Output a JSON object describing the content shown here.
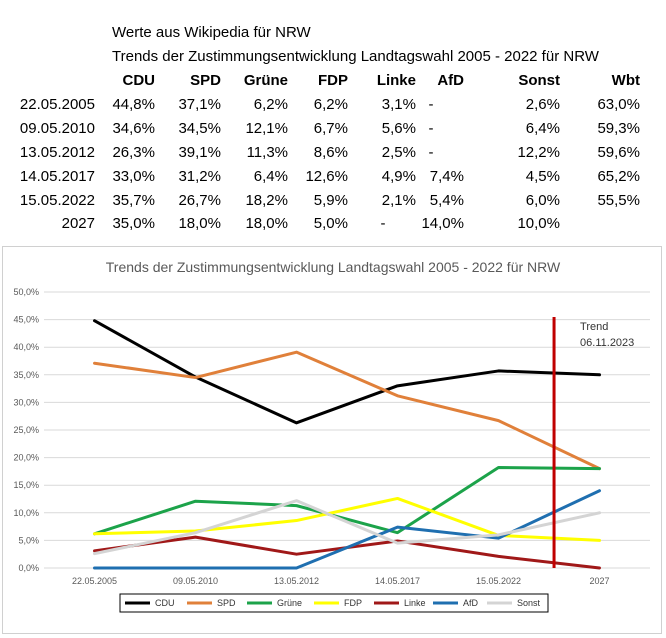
{
  "header": {
    "source": "Werte aus Wikipedia für NRW",
    "title": "Trends der Zustimmungsentwicklung Landtagswahl 2005 - 2022 für NRW"
  },
  "table": {
    "columns": [
      "CDU",
      "SPD",
      "Grüne",
      "FDP",
      "Linke",
      "AfD",
      "Sonst",
      "Wbt"
    ],
    "rows": [
      {
        "date": "22.05.2005",
        "cells": [
          "44,8%",
          "37,1%",
          "6,2%",
          "6,2%",
          "3,1%",
          "-",
          "2,6%",
          "63,0%"
        ]
      },
      {
        "date": "09.05.2010",
        "cells": [
          "34,6%",
          "34,5%",
          "12,1%",
          "6,7%",
          "5,6%",
          "-",
          "6,4%",
          "59,3%"
        ]
      },
      {
        "date": "13.05.2012",
        "cells": [
          "26,3%",
          "39,1%",
          "11,3%",
          "8,6%",
          "2,5%",
          "-",
          "12,2%",
          "59,6%"
        ]
      },
      {
        "date": "14.05.2017",
        "cells": [
          "33,0%",
          "31,2%",
          "6,4%",
          "12,6%",
          "4,9%",
          "7,4%",
          "4,5%",
          "65,2%"
        ]
      },
      {
        "date": "15.05.2022",
        "cells": [
          "35,7%",
          "26,7%",
          "18,2%",
          "5,9%",
          "2,1%",
          "5,4%",
          "6,0%",
          "55,5%"
        ]
      },
      {
        "date": "2027",
        "cells": [
          "35,0%",
          "18,0%",
          "18,0%",
          "5,0%",
          "-",
          "14,0%",
          "10,0%",
          ""
        ]
      }
    ]
  },
  "chart_data": {
    "type": "line",
    "title": "Trends der Zustimmungsentwicklung Landtagswahl 2005 - 2022 für NRW",
    "categories": [
      "22.05.2005",
      "09.05.2010",
      "13.05.2012",
      "14.05.2017",
      "15.05.2022",
      "2027"
    ],
    "ylim": [
      0,
      50
    ],
    "yticks": [
      "0,0%",
      "5,0%",
      "10,0%",
      "15,0%",
      "20,0%",
      "25,0%",
      "30,0%",
      "35,0%",
      "40,0%",
      "45,0%",
      "50,0%"
    ],
    "legend_position": "bottom",
    "series": [
      {
        "name": "CDU",
        "color": "#000000",
        "values": [
          44.8,
          34.6,
          26.3,
          33.0,
          35.7,
          35.0
        ]
      },
      {
        "name": "SPD",
        "color": "#E0803A",
        "values": [
          37.1,
          34.5,
          39.1,
          31.2,
          26.7,
          18.0
        ]
      },
      {
        "name": "Grüne",
        "color": "#1CA34A",
        "values": [
          6.2,
          12.1,
          11.3,
          6.4,
          18.2,
          18.0
        ]
      },
      {
        "name": "FDP",
        "color": "#FFFF00",
        "values": [
          6.2,
          6.7,
          8.6,
          12.6,
          5.9,
          5.0
        ]
      },
      {
        "name": "Linke",
        "color": "#A01818",
        "values": [
          3.1,
          5.6,
          2.5,
          4.9,
          2.1,
          0.0
        ]
      },
      {
        "name": "AfD",
        "color": "#1F6FB0",
        "values": [
          0.0,
          0.0,
          0.0,
          7.4,
          5.4,
          14.0
        ]
      },
      {
        "name": "Sonst",
        "color": "#D4D4D4",
        "values": [
          2.6,
          6.4,
          12.2,
          4.5,
          6.0,
          10.0
        ]
      }
    ],
    "trend_line": {
      "x_position": 4.55,
      "color": "#C00000",
      "label_lines": [
        "Trend",
        "06.11.2023"
      ]
    }
  }
}
